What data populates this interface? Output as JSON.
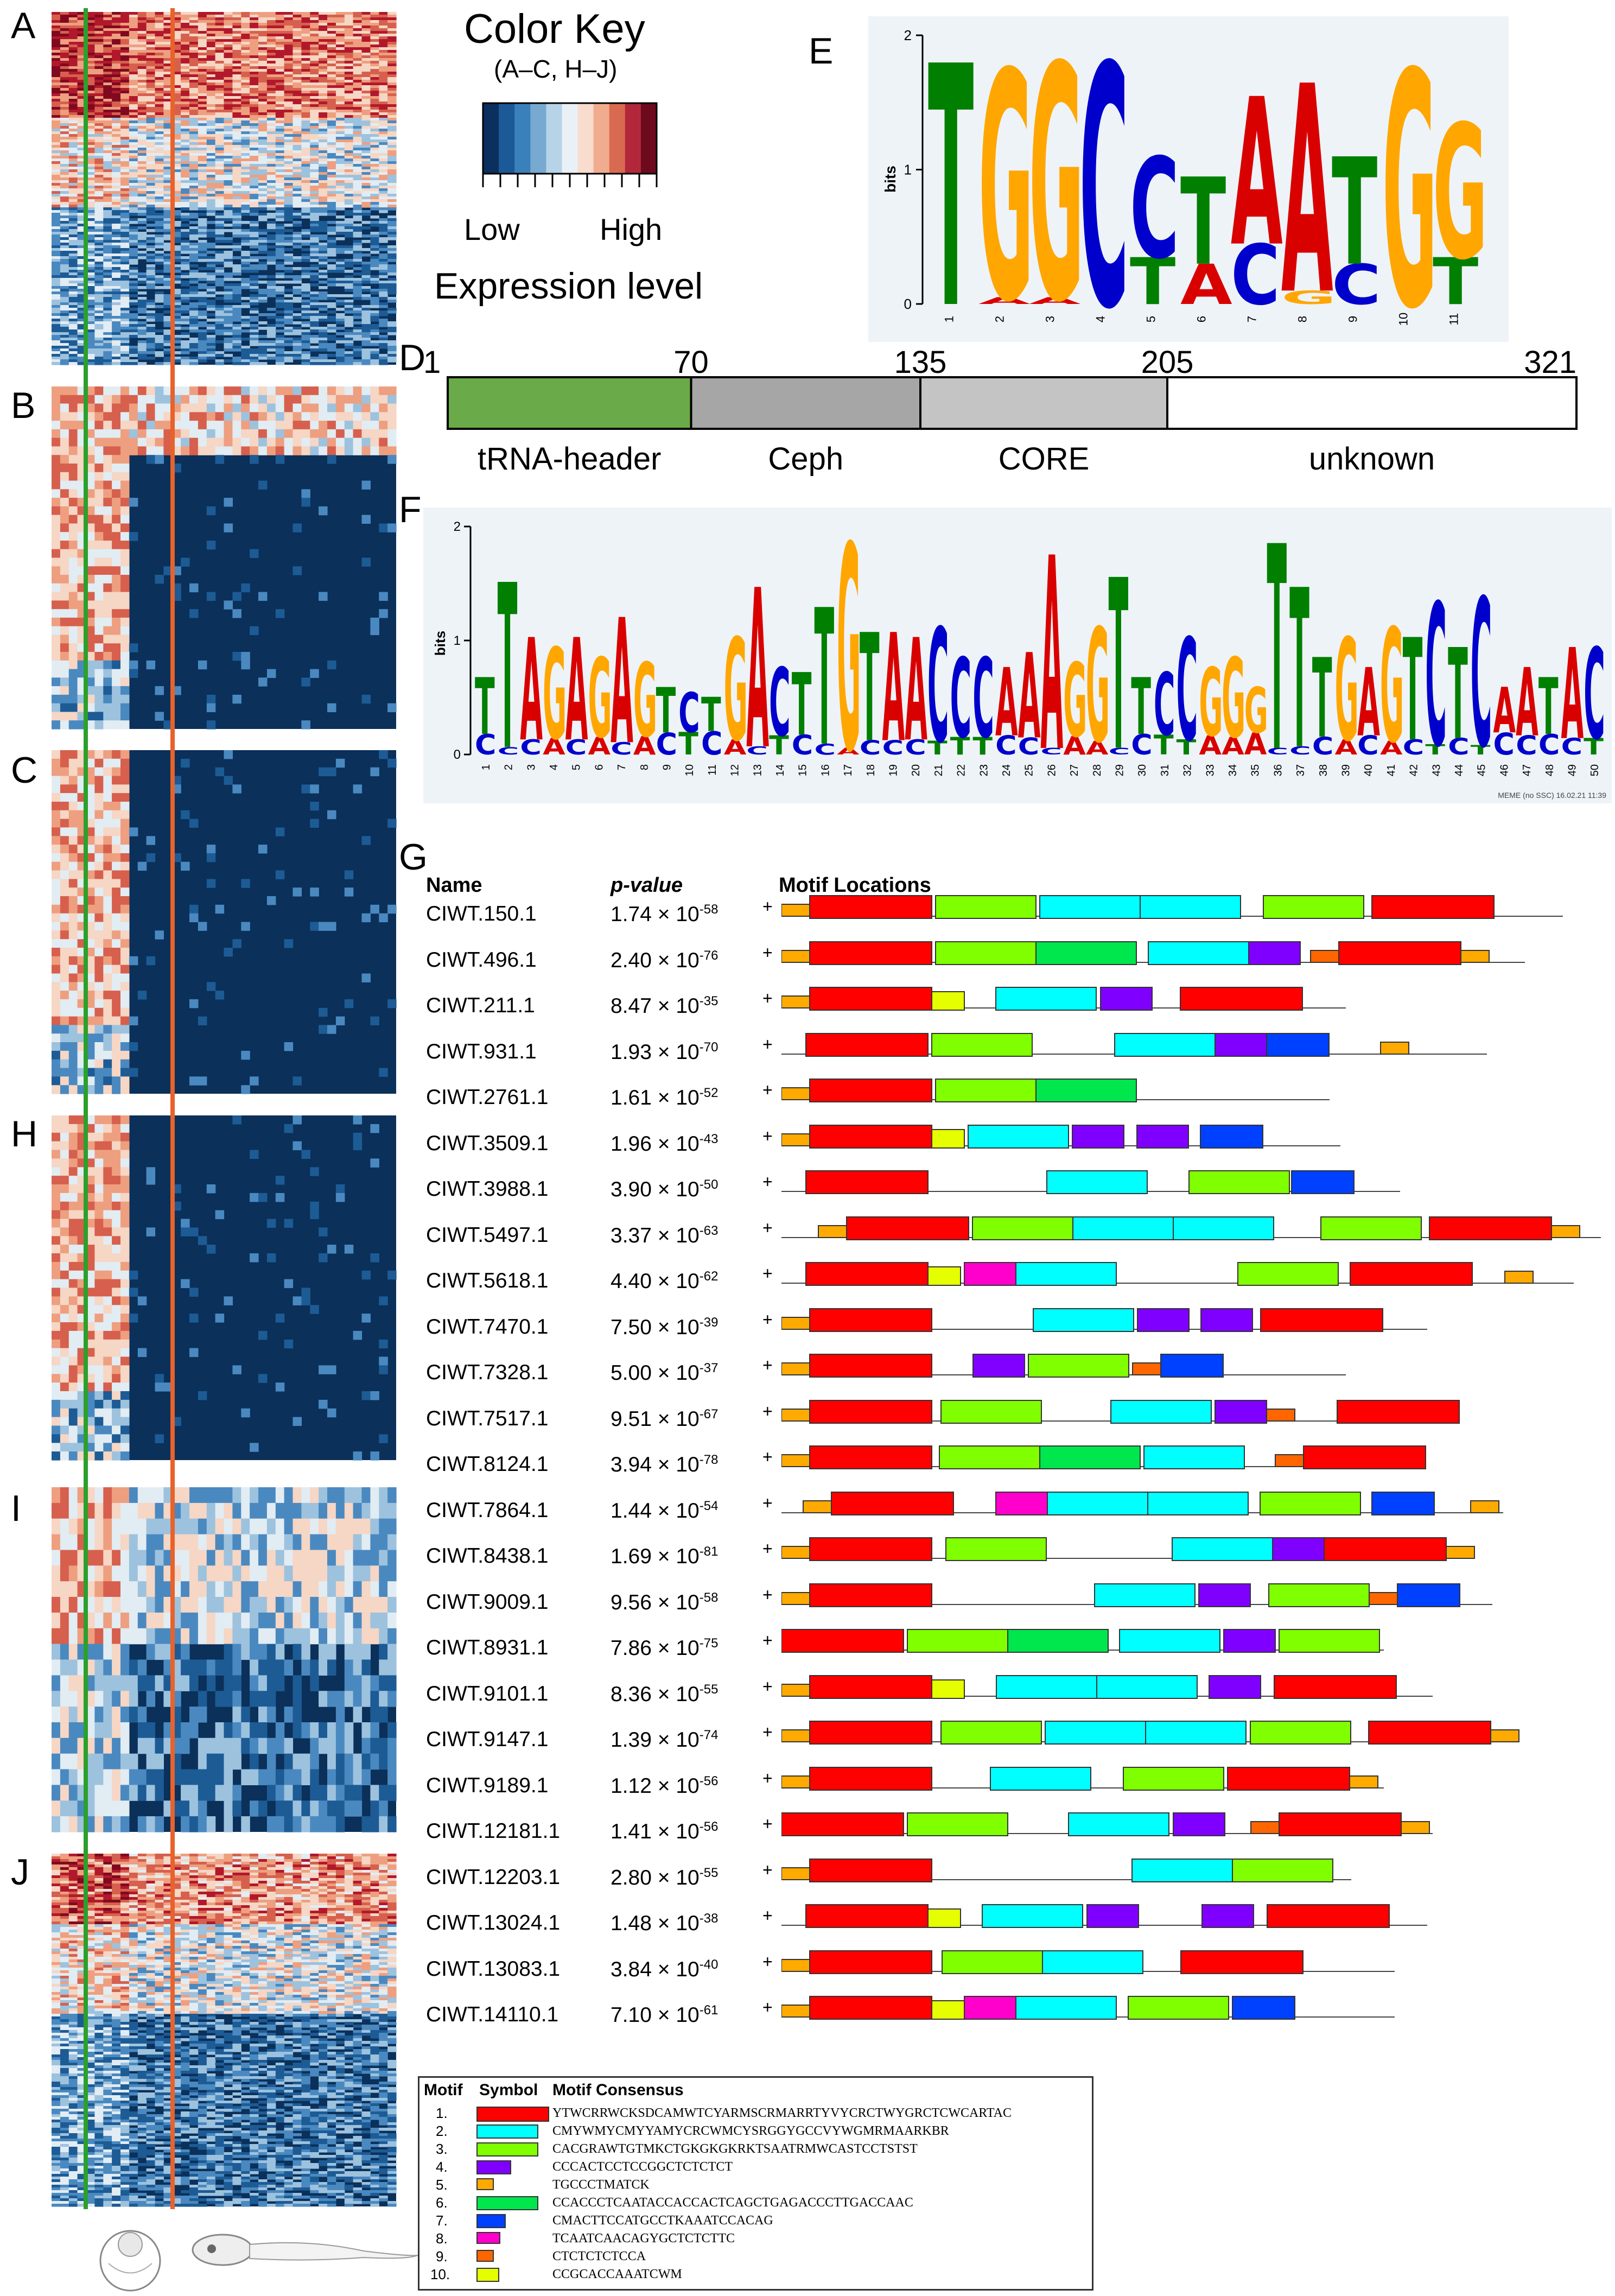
{
  "panel_letters": {
    "A": "A",
    "B": "B",
    "C": "C",
    "H": "H",
    "I": "I",
    "J": "J",
    "E": "E",
    "D": "D",
    "F": "F",
    "G": "G"
  },
  "color_key": {
    "title": "Color Key",
    "subtitle": "(A–C, H–J)",
    "low": "Low",
    "high": "High",
    "label": "Expression level",
    "colors": [
      "#0b2f5f",
      "#1b5a96",
      "#3a80bb",
      "#78a9d0",
      "#b7d3e7",
      "#eaf1f6",
      "#f8dccd",
      "#f0ac8f",
      "#d96a52",
      "#b2283a",
      "#6e0a1e"
    ]
  },
  "heatmap": {
    "palette": [
      "#0b3059",
      "#1d5b95",
      "#4a89c0",
      "#9dc2de",
      "#e2ecf3",
      "#f6d6c4",
      "#ee9f80",
      "#d6604d",
      "#b2182b",
      "#7f0a1f"
    ],
    "guide_green": "#2ca02c",
    "guide_orange": "#e8622c"
  },
  "panel_e": {
    "y_label": "bits",
    "y_ticks": [
      "0",
      "1",
      "2"
    ],
    "positions": [
      "1",
      "2",
      "3",
      "4",
      "5",
      "6",
      "7",
      "8",
      "9",
      "10",
      "11"
    ],
    "main_letters": [
      "T",
      "G",
      "G",
      "C",
      "C",
      "T",
      "A",
      "A",
      "T",
      "G",
      "G"
    ],
    "main_heights": [
      1.8,
      1.7,
      1.75,
      1.8,
      0.75,
      0.65,
      1.1,
      1.55,
      0.8,
      1.75,
      1.0
    ],
    "sub_letters": [
      "",
      "A",
      "A",
      "",
      "T",
      "A",
      "C",
      "G",
      "C",
      "",
      "T"
    ],
    "sub_heights": [
      0,
      0.05,
      0.05,
      0,
      0.35,
      0.3,
      0.45,
      0.1,
      0.3,
      0,
      0.35
    ]
  },
  "panel_d": {
    "ticks": [
      "1",
      "70",
      "135",
      "205",
      "321"
    ],
    "domains": [
      {
        "label": "tRNA-header",
        "start": 1,
        "end": 70,
        "color": "#6aaa48"
      },
      {
        "label": "Ceph",
        "start": 70,
        "end": 135,
        "color": "#a6a6a6"
      },
      {
        "label": "CORE",
        "start": 135,
        "end": 205,
        "color": "#c4c4c4"
      },
      {
        "label": "unknown",
        "start": 205,
        "end": 321,
        "color": "#ffffff"
      }
    ],
    "total": 321
  },
  "panel_f": {
    "y_label": "bits",
    "y_ticks": [
      "0",
      "1",
      "2"
    ],
    "footer": "MEME (no SSC) 16.02.21 11:39",
    "letters": "TTAGAGAGTCTGACTTGTAACCCAAAGGTTCCGGGTTTGAGTCTCAATAC",
    "heights": [
      0.5,
      1.45,
      0.9,
      0.8,
      0.9,
      0.7,
      1.1,
      0.65,
      0.4,
      0.35,
      0.3,
      0.9,
      1.4,
      0.6,
      0.55,
      1.2,
      1.8,
      0.95,
      0.95,
      0.9,
      1.0,
      0.7,
      0.7,
      0.6,
      0.75,
      1.7,
      0.65,
      1.0,
      1.5,
      0.5,
      0.55,
      0.9,
      0.6,
      0.7,
      0.4,
      1.8,
      1.4,
      0.7,
      0.9,
      0.6,
      1.0,
      0.9,
      1.25,
      0.8,
      1.3,
      0.4,
      0.6,
      0.5,
      0.8,
      0.8
    ]
  },
  "panel_g": {
    "headers": {
      "name": "Name",
      "pvalue": "p-value",
      "motif": "Motif Locations"
    },
    "strand": "+",
    "rows": [
      {
        "name": "CIWT.150.1",
        "p": "1.74 × 10",
        "exp": "-58"
      },
      {
        "name": "CIWT.496.1",
        "p": "2.40 × 10",
        "exp": "-76"
      },
      {
        "name": "CIWT.211.1",
        "p": "8.47 × 10",
        "exp": "-35"
      },
      {
        "name": "CIWT.931.1",
        "p": "1.93 × 10",
        "exp": "-70"
      },
      {
        "name": "CIWT.2761.1",
        "p": "1.61 × 10",
        "exp": "-52"
      },
      {
        "name": "CIWT.3509.1",
        "p": "1.96 × 10",
        "exp": "-43"
      },
      {
        "name": "CIWT.3988.1",
        "p": "3.90 × 10",
        "exp": "-50"
      },
      {
        "name": "CIWT.5497.1",
        "p": "3.37 × 10",
        "exp": "-63"
      },
      {
        "name": "CIWT.5618.1",
        "p": "4.40 × 10",
        "exp": "-62"
      },
      {
        "name": "CIWT.7470.1",
        "p": "7.50 × 10",
        "exp": "-39"
      },
      {
        "name": "CIWT.7328.1",
        "p": "5.00 × 10",
        "exp": "-37"
      },
      {
        "name": "CIWT.7517.1",
        "p": "9.51 × 10",
        "exp": "-67"
      },
      {
        "name": "CIWT.8124.1",
        "p": "3.94 × 10",
        "exp": "-78"
      },
      {
        "name": "CIWT.7864.1",
        "p": "1.44 × 10",
        "exp": "-54"
      },
      {
        "name": "CIWT.8438.1",
        "p": "1.69 × 10",
        "exp": "-81"
      },
      {
        "name": "CIWT.9009.1",
        "p": "9.56 × 10",
        "exp": "-58"
      },
      {
        "name": "CIWT.8931.1",
        "p": "7.86 × 10",
        "exp": "-75"
      },
      {
        "name": "CIWT.9101.1",
        "p": "8.36 × 10",
        "exp": "-55"
      },
      {
        "name": "CIWT.9147.1",
        "p": "1.39 × 10",
        "exp": "-74"
      },
      {
        "name": "CIWT.9189.1",
        "p": "1.12 × 10",
        "exp": "-56"
      },
      {
        "name": "CIWT.12181.1",
        "p": "1.41 × 10",
        "exp": "-56"
      },
      {
        "name": "CIWT.12203.1",
        "p": "2.80 × 10",
        "exp": "-55"
      },
      {
        "name": "CIWT.13024.1",
        "p": "1.48 × 10",
        "exp": "-38"
      },
      {
        "name": "CIWT.13083.1",
        "p": "3.84 × 10",
        "exp": "-40"
      },
      {
        "name": "CIWT.14110.1",
        "p": "7.10 × 10",
        "exp": "-61"
      }
    ],
    "motif_colors": {
      "1": "#ff0000",
      "2": "#00ffff",
      "3": "#80ff00",
      "4": "#8000ff",
      "5": "#ffaa00",
      "6": "#00e64d",
      "7": "#0040ff",
      "8": "#ff00cc",
      "9": "#ff6600",
      "10": "#e6ff00"
    },
    "legend": {
      "headers": {
        "motif": "Motif",
        "symbol": "Symbol",
        "consensus": "Motif Consensus"
      },
      "items": [
        {
          "n": "1.",
          "c": "YTWCRRWCKSDCAMWTCYARMSCRMARRTYVYCRCTWYGRCTCWCARTAC"
        },
        {
          "n": "2.",
          "c": "CMYWMYCMYYAMYCRCWMCYSRGGYGCCVYWGMRMAARKBR"
        },
        {
          "n": "3.",
          "c": "CACGRAWTGTMKCTGKGKGKRKTSAATRMWCASTCCTSTST"
        },
        {
          "n": "4.",
          "c": "CCCACTCCTCCGGCTCTCTCT"
        },
        {
          "n": "5.",
          "c": "TGCCCTMATCK"
        },
        {
          "n": "6.",
          "c": "CCACCCTCAATACCACCACTCAGCTGAGACCCTTGACCAAC"
        },
        {
          "n": "7.",
          "c": "CMACTTCCATGCCTKAAATCCACAG"
        },
        {
          "n": "8.",
          "c": "TCAATCAACAGYGCTCTCTTC"
        },
        {
          "n": "9.",
          "c": "CTCTCTCTCCA"
        },
        {
          "n": "10.",
          "c": "CCGCACCAAATCWM"
        }
      ]
    }
  }
}
